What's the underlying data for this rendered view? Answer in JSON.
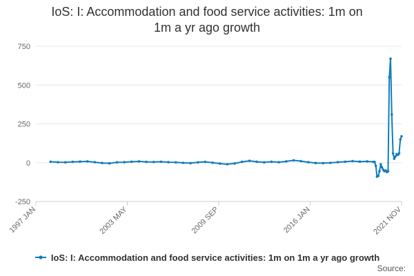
{
  "page": {
    "title_line1": "IoS: I: Accommodation and food service activities: 1m on",
    "title_line2": "1m a yr ago growth",
    "source_label": "Source:"
  },
  "colors": {
    "series": "#0f7cbf",
    "grid": "#e6e6e6",
    "axis_text": "#666666"
  },
  "chart_data": {
    "type": "line",
    "title": "IoS: I: Accommodation and food service activities: 1m on 1m a yr ago growth",
    "xlabel": "",
    "ylabel": "",
    "ylim": [
      -250,
      750
    ],
    "yticks": [
      -250,
      0,
      250,
      500,
      750
    ],
    "xlim": [
      "1997-01",
      "2021-11"
    ],
    "x_tick_labels": [
      "1997 JAN",
      "2003 MAY",
      "2009 SEP",
      "2016 JAN",
      "2021 NOV"
    ],
    "grid": true,
    "legend_position": "bottom",
    "series": [
      {
        "name": "IoS: I: Accommodation and food service activities: 1m on 1m a yr ago growth",
        "x": [
          "1998-01",
          "1998-07",
          "1999-01",
          "1999-07",
          "2000-01",
          "2000-07",
          "2001-01",
          "2001-07",
          "2002-01",
          "2002-07",
          "2003-01",
          "2003-07",
          "2004-01",
          "2004-07",
          "2005-01",
          "2005-07",
          "2006-01",
          "2006-07",
          "2007-01",
          "2007-07",
          "2008-01",
          "2008-07",
          "2009-01",
          "2009-07",
          "2010-01",
          "2010-07",
          "2011-01",
          "2011-07",
          "2012-01",
          "2012-07",
          "2013-01",
          "2013-07",
          "2014-01",
          "2014-07",
          "2015-01",
          "2015-07",
          "2016-01",
          "2016-07",
          "2017-01",
          "2017-07",
          "2018-01",
          "2018-07",
          "2019-01",
          "2019-07",
          "2019-12",
          "2020-01",
          "2020-02",
          "2020-03",
          "2020-04",
          "2020-05",
          "2020-06",
          "2020-07",
          "2020-08",
          "2020-09",
          "2020-10",
          "2020-11",
          "2020-12",
          "2021-01",
          "2021-02",
          "2021-03",
          "2021-04",
          "2021-05",
          "2021-06",
          "2021-07",
          "2021-08",
          "2021-09",
          "2021-10",
          "2021-11"
        ],
        "y": [
          6,
          3,
          2,
          5,
          7,
          8,
          3,
          -2,
          -4,
          2,
          3,
          6,
          8,
          5,
          4,
          6,
          3,
          2,
          -1,
          -3,
          2,
          5,
          0,
          -6,
          -10,
          -5,
          5,
          12,
          6,
          2,
          6,
          3,
          8,
          15,
          10,
          3,
          -2,
          -3,
          -1,
          3,
          6,
          10,
          7,
          8,
          5,
          4,
          -20,
          -90,
          -85,
          -55,
          -10,
          -30,
          -45,
          -55,
          -50,
          -60,
          -55,
          550,
          670,
          310,
          60,
          25,
          40,
          55,
          50,
          60,
          150,
          170
        ]
      }
    ]
  }
}
